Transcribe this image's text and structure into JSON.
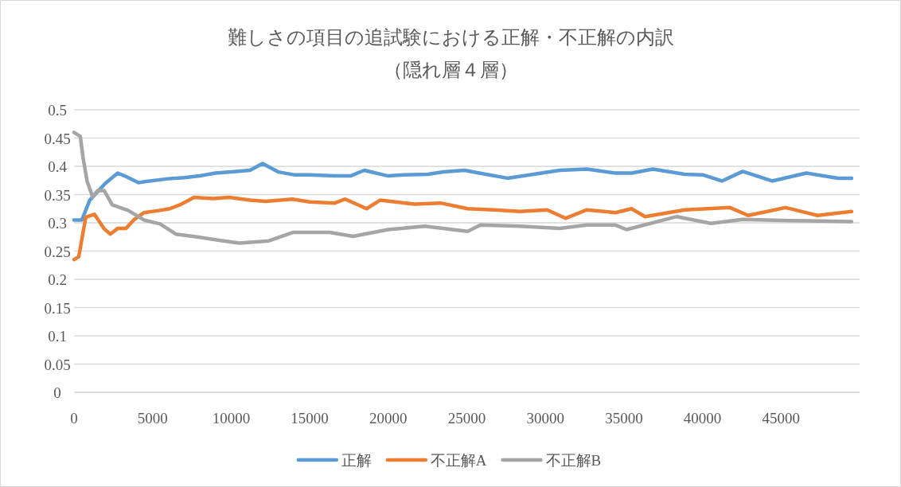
{
  "chart_data": {
    "type": "line",
    "title": "難しさの項目の追試験における正解・不正解の内訳",
    "subtitle": "（隠れ層４層）",
    "xlim": [
      0,
      50000
    ],
    "xticks": [
      0,
      5000,
      10000,
      15000,
      20000,
      25000,
      30000,
      35000,
      40000,
      45000
    ],
    "ylim": [
      0,
      0.5
    ],
    "yticks": [
      0,
      0.05,
      0.1,
      0.15,
      0.2,
      0.25,
      0.3,
      0.35,
      0.4,
      0.45,
      0.5
    ],
    "grid": "y",
    "legend": "bottom",
    "marker": "none",
    "line_style": "solid",
    "series": [
      {
        "name": "正解",
        "color": "#5b9bd5",
        "x": [
          0,
          500,
          1000,
          2000,
          2780,
          3300,
          4100,
          4500,
          6000,
          7000,
          8000,
          9000,
          10000,
          11200,
          12000,
          13000,
          14000,
          15000,
          16600,
          17600,
          18470,
          19990,
          21000,
          22520,
          23500,
          24850,
          26000,
          27580,
          29250,
          30920,
          32640,
          34460,
          35500,
          36840,
          38870,
          40000,
          41240,
          42560,
          44430,
          46610,
          48630,
          49490
        ],
        "values": [
          0.305,
          0.305,
          0.34,
          0.37,
          0.388,
          0.382,
          0.371,
          0.373,
          0.378,
          0.38,
          0.383,
          0.388,
          0.39,
          0.393,
          0.405,
          0.39,
          0.385,
          0.385,
          0.383,
          0.383,
          0.393,
          0.383,
          0.385,
          0.386,
          0.39,
          0.393,
          0.387,
          0.379,
          0.386,
          0.393,
          0.395,
          0.388,
          0.388,
          0.395,
          0.386,
          0.385,
          0.374,
          0.391,
          0.374,
          0.388,
          0.379,
          0.379
        ]
      },
      {
        "name": "不正解A",
        "color": "#ed7d31",
        "x": [
          0,
          300,
          750,
          1300,
          1900,
          2300,
          2780,
          3300,
          3800,
          4450,
          5470,
          6100,
          6830,
          7640,
          8860,
          9870,
          11200,
          12200,
          13900,
          15000,
          16600,
          17260,
          18620,
          19480,
          21660,
          23330,
          25050,
          26720,
          28390,
          30110,
          31280,
          32640,
          34460,
          35480,
          36340,
          38870,
          41750,
          42910,
          45290,
          47320,
          49490
        ],
        "values": [
          0.235,
          0.24,
          0.31,
          0.315,
          0.29,
          0.28,
          0.29,
          0.29,
          0.305,
          0.318,
          0.322,
          0.325,
          0.333,
          0.345,
          0.343,
          0.345,
          0.34,
          0.338,
          0.342,
          0.337,
          0.335,
          0.342,
          0.325,
          0.34,
          0.333,
          0.335,
          0.325,
          0.323,
          0.32,
          0.323,
          0.308,
          0.323,
          0.318,
          0.325,
          0.311,
          0.323,
          0.327,
          0.313,
          0.327,
          0.313,
          0.32
        ]
      },
      {
        "name": "不正解B",
        "color": "#a5a5a5",
        "x": [
          0,
          400,
          570,
          830,
          1180,
          1500,
          1920,
          2430,
          3440,
          4450,
          5470,
          6480,
          7840,
          9510,
          10530,
          12400,
          13920,
          16250,
          17760,
          19990,
          22320,
          25050,
          25860,
          28390,
          30920,
          32640,
          34460,
          35170,
          38360,
          40540,
          42560,
          45600,
          49490
        ],
        "values": [
          0.46,
          0.453,
          0.416,
          0.374,
          0.346,
          0.357,
          0.357,
          0.332,
          0.322,
          0.305,
          0.298,
          0.28,
          0.275,
          0.268,
          0.264,
          0.268,
          0.283,
          0.283,
          0.276,
          0.288,
          0.294,
          0.285,
          0.296,
          0.294,
          0.29,
          0.296,
          0.296,
          0.288,
          0.311,
          0.299,
          0.306,
          0.304,
          0.302
        ]
      }
    ]
  }
}
